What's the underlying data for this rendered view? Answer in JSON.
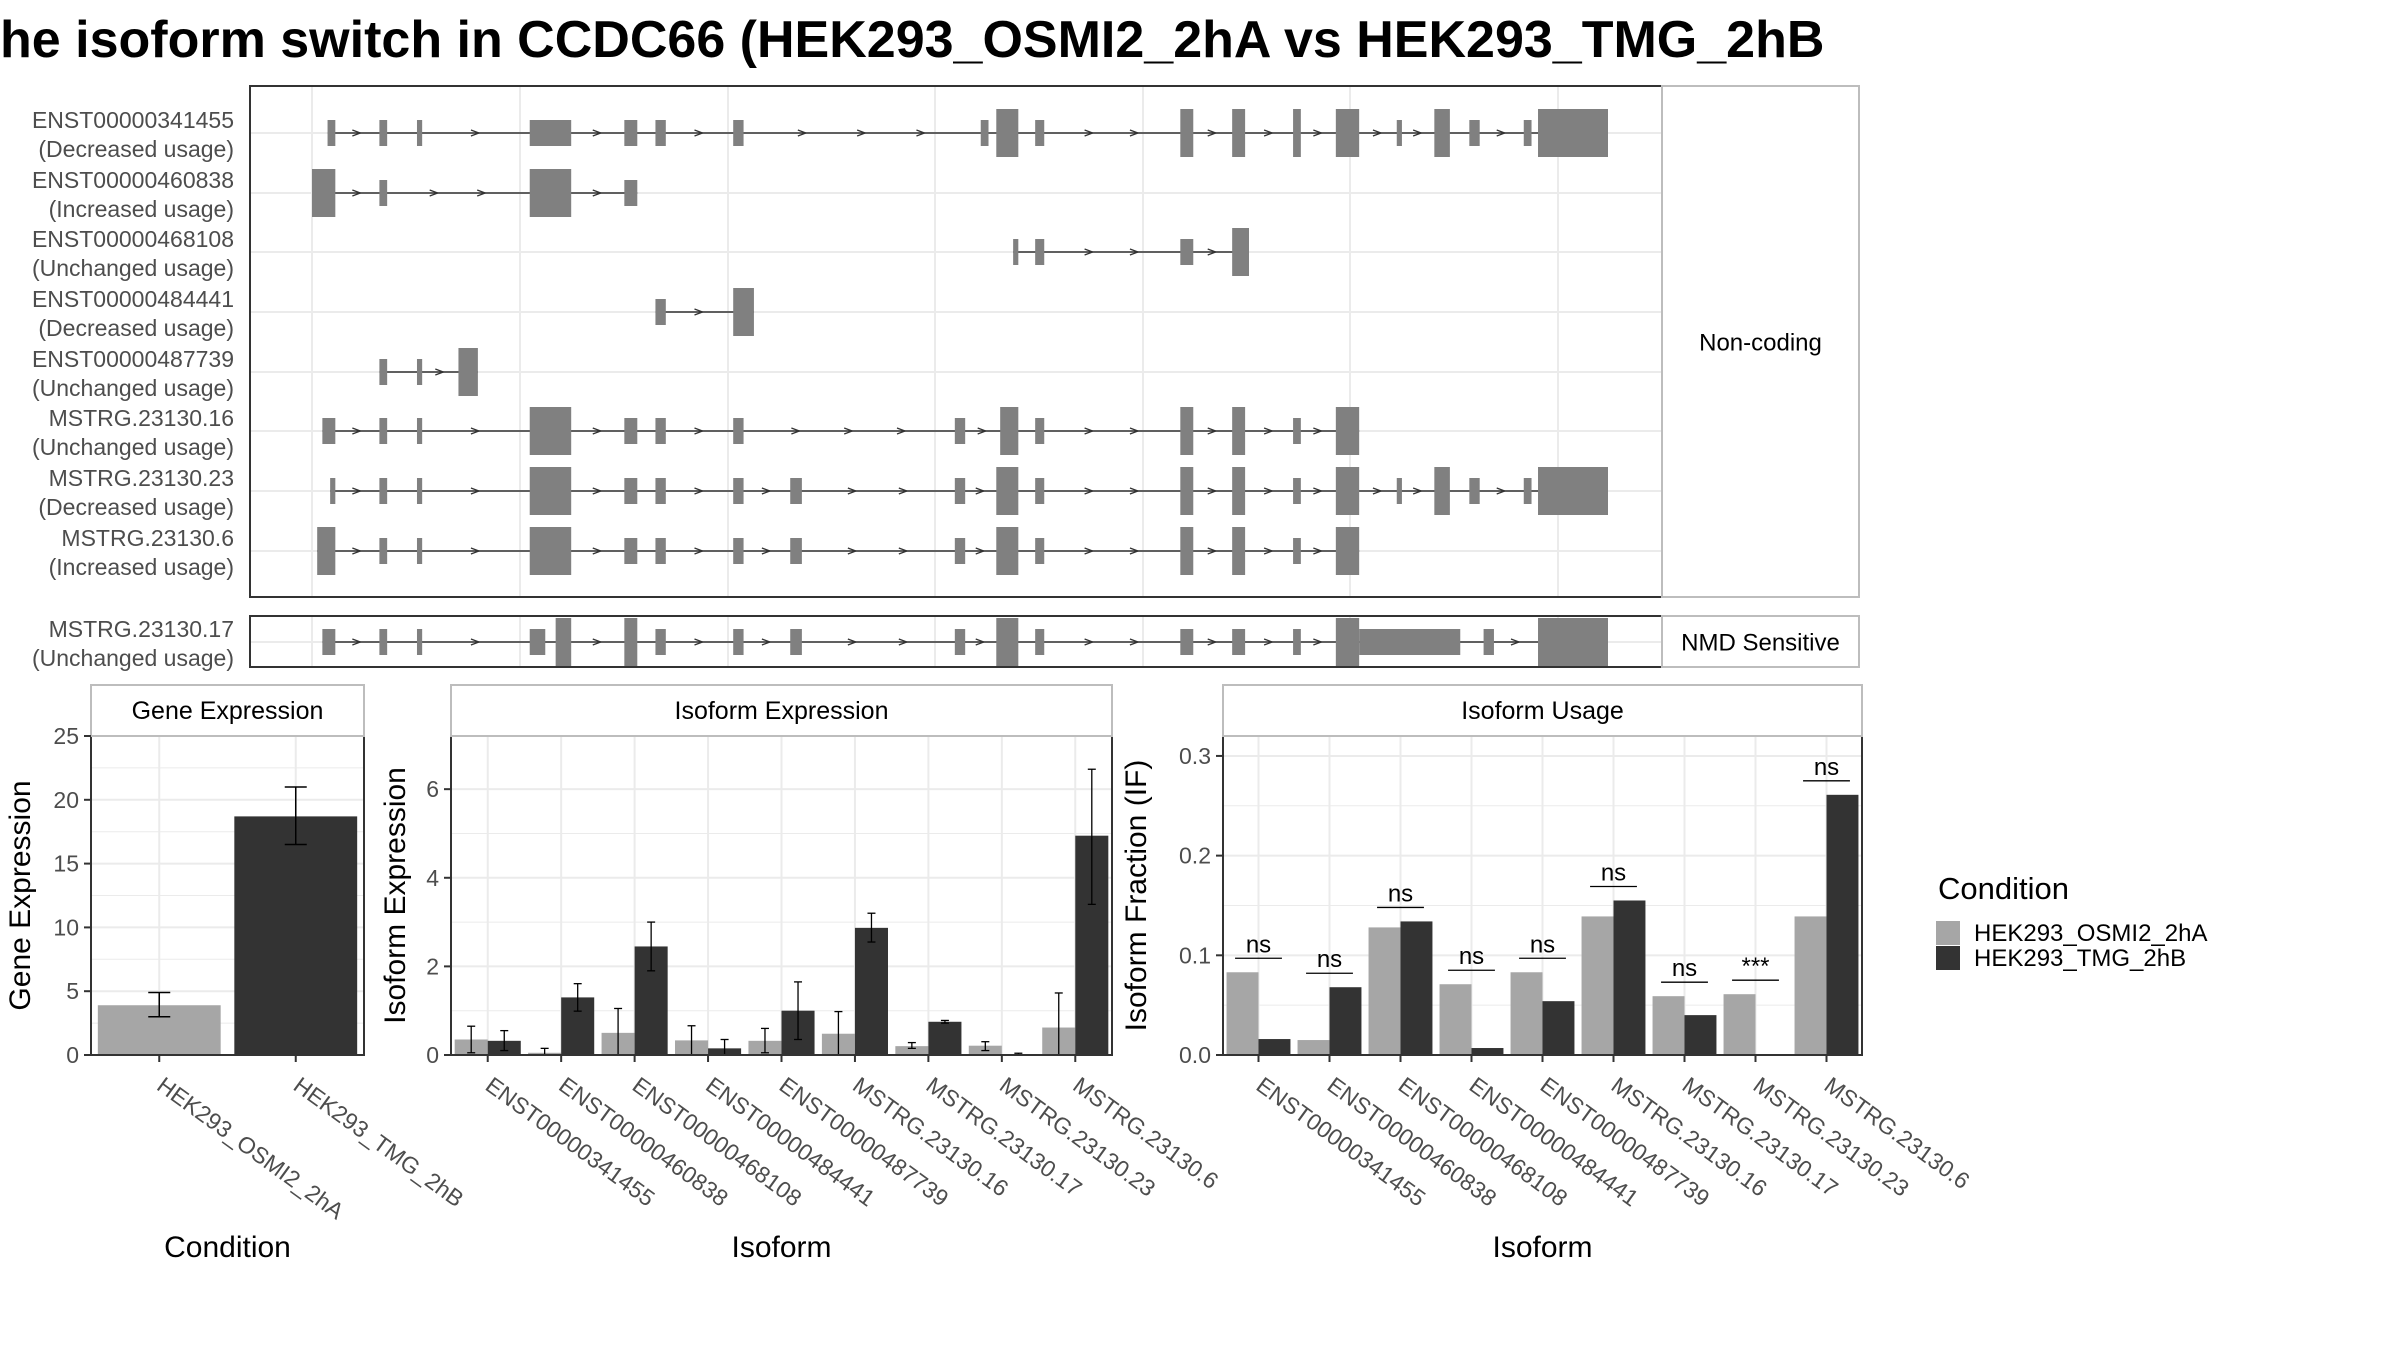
{
  "title": "he isoform switch in CCDC66 (HEK293_OSMI2_2hA vs HEK293_TMG_2hB",
  "colors": {
    "cond_a": "#a6a6a6",
    "cond_b": "#333333",
    "exon": "#808080",
    "grid": "#ebebeb",
    "panel_border": "#333333",
    "strip_border": "#bdbdbd"
  },
  "transcripts": {
    "groups": [
      {
        "label": "Non-coding",
        "isoforms": [
          {
            "id": "ENST00000341455",
            "usage": "(Decreased usage)",
            "exons": [
              [
                0.012,
                0.018
              ],
              [
                0.052,
                0.058
              ],
              [
                0.081,
                0.085
              ],
              [
                0.168,
                0.2
              ],
              [
                0.241,
                0.251
              ],
              [
                0.265,
                0.273
              ],
              [
                0.325,
                0.333
              ],
              [
                0.516,
                0.522
              ],
              [
                0.528,
                0.545
              ],
              [
                0.558,
                0.565
              ],
              [
                0.67,
                0.68
              ],
              [
                0.71,
                0.72
              ],
              [
                0.757,
                0.763
              ],
              [
                0.79,
                0.808
              ],
              [
                0.837,
                0.841
              ],
              [
                0.866,
                0.878
              ],
              [
                0.893,
                0.901
              ],
              [
                0.935,
                0.941
              ],
              [
                0.946,
                1.0
              ]
            ],
            "thick": [
              [
                0.528,
                0.545
              ],
              [
                0.67,
                0.68
              ],
              [
                0.71,
                0.72
              ],
              [
                0.757,
                0.763
              ],
              [
                0.79,
                0.808
              ],
              [
                0.866,
                0.878
              ],
              [
                0.946,
                1.0
              ]
            ]
          },
          {
            "id": "ENST00000460838",
            "usage": "(Increased usage)",
            "exons": [
              [
                0.0,
                0.018
              ],
              [
                0.052,
                0.058
              ],
              [
                0.168,
                0.2
              ],
              [
                0.241,
                0.251
              ]
            ],
            "thick": [
              [
                0.0,
                0.018
              ],
              [
                0.168,
                0.2
              ]
            ]
          },
          {
            "id": "ENST00000468108",
            "usage": "(Unchanged usage)",
            "exons": [
              [
                0.541,
                0.545
              ],
              [
                0.558,
                0.565
              ],
              [
                0.67,
                0.68
              ],
              [
                0.71,
                0.723
              ]
            ],
            "thick": [
              [
                0.71,
                0.723
              ]
            ]
          },
          {
            "id": "ENST00000484441",
            "usage": "(Decreased usage)",
            "exons": [
              [
                0.265,
                0.273
              ],
              [
                0.325,
                0.341
              ]
            ],
            "thick": [
              [
                0.325,
                0.341
              ]
            ]
          },
          {
            "id": "ENST00000487739",
            "usage": "(Unchanged usage)",
            "exons": [
              [
                0.052,
                0.058
              ],
              [
                0.081,
                0.085
              ],
              [
                0.113,
                0.128
              ]
            ],
            "thick": [
              [
                0.113,
                0.128
              ]
            ]
          },
          {
            "id": "MSTRG.23130.16",
            "usage": "(Unchanged usage)",
            "exons": [
              [
                0.008,
                0.018
              ],
              [
                0.052,
                0.058
              ],
              [
                0.081,
                0.085
              ],
              [
                0.168,
                0.2
              ],
              [
                0.241,
                0.251
              ],
              [
                0.265,
                0.273
              ],
              [
                0.325,
                0.333
              ],
              [
                0.496,
                0.504
              ],
              [
                0.531,
                0.545
              ],
              [
                0.558,
                0.565
              ],
              [
                0.67,
                0.68
              ],
              [
                0.71,
                0.72
              ],
              [
                0.757,
                0.763
              ],
              [
                0.79,
                0.808
              ]
            ],
            "thick": [
              [
                0.168,
                0.2
              ],
              [
                0.531,
                0.545
              ],
              [
                0.67,
                0.68
              ],
              [
                0.71,
                0.72
              ],
              [
                0.79,
                0.808
              ]
            ]
          },
          {
            "id": "MSTRG.23130.23",
            "usage": "(Decreased usage)",
            "exons": [
              [
                0.014,
                0.018
              ],
              [
                0.052,
                0.058
              ],
              [
                0.081,
                0.085
              ],
              [
                0.168,
                0.2
              ],
              [
                0.241,
                0.251
              ],
              [
                0.265,
                0.273
              ],
              [
                0.325,
                0.333
              ],
              [
                0.369,
                0.378
              ],
              [
                0.496,
                0.504
              ],
              [
                0.528,
                0.545
              ],
              [
                0.558,
                0.565
              ],
              [
                0.67,
                0.68
              ],
              [
                0.71,
                0.72
              ],
              [
                0.757,
                0.763
              ],
              [
                0.79,
                0.808
              ],
              [
                0.837,
                0.841
              ],
              [
                0.866,
                0.878
              ],
              [
                0.893,
                0.901
              ],
              [
                0.935,
                0.941
              ],
              [
                0.946,
                1.0
              ]
            ],
            "thick": [
              [
                0.168,
                0.2
              ],
              [
                0.528,
                0.545
              ],
              [
                0.67,
                0.68
              ],
              [
                0.71,
                0.72
              ],
              [
                0.79,
                0.808
              ],
              [
                0.866,
                0.878
              ],
              [
                0.946,
                1.0
              ]
            ]
          },
          {
            "id": "MSTRG.23130.6",
            "usage": "(Increased usage)",
            "exons": [
              [
                0.004,
                0.018
              ],
              [
                0.052,
                0.058
              ],
              [
                0.081,
                0.085
              ],
              [
                0.168,
                0.2
              ],
              [
                0.241,
                0.251
              ],
              [
                0.265,
                0.273
              ],
              [
                0.325,
                0.333
              ],
              [
                0.369,
                0.378
              ],
              [
                0.496,
                0.504
              ],
              [
                0.528,
                0.545
              ],
              [
                0.558,
                0.565
              ],
              [
                0.67,
                0.68
              ],
              [
                0.71,
                0.72
              ],
              [
                0.757,
                0.763
              ],
              [
                0.79,
                0.808
              ]
            ],
            "thick": [
              [
                0.004,
                0.018
              ],
              [
                0.168,
                0.2
              ],
              [
                0.528,
                0.545
              ],
              [
                0.67,
                0.68
              ],
              [
                0.71,
                0.72
              ],
              [
                0.79,
                0.808
              ]
            ]
          }
        ]
      },
      {
        "label": "NMD Sensitive",
        "isoforms": [
          {
            "id": "MSTRG.23130.17",
            "usage": "(Unchanged usage)",
            "exons": [
              [
                0.008,
                0.018
              ],
              [
                0.052,
                0.058
              ],
              [
                0.081,
                0.085
              ],
              [
                0.168,
                0.18
              ],
              [
                0.188,
                0.2
              ],
              [
                0.241,
                0.251
              ],
              [
                0.265,
                0.273
              ],
              [
                0.325,
                0.333
              ],
              [
                0.369,
                0.378
              ],
              [
                0.496,
                0.504
              ],
              [
                0.528,
                0.545
              ],
              [
                0.558,
                0.565
              ],
              [
                0.67,
                0.68
              ],
              [
                0.71,
                0.72
              ],
              [
                0.757,
                0.763
              ],
              [
                0.79,
                0.808
              ],
              [
                0.808,
                0.886
              ],
              [
                0.904,
                0.912
              ],
              [
                0.946,
                1.0
              ]
            ],
            "thick": [
              [
                0.188,
                0.2
              ],
              [
                0.241,
                0.251
              ],
              [
                0.528,
                0.545
              ],
              [
                0.79,
                0.808
              ],
              [
                0.946,
                1.0
              ]
            ]
          }
        ]
      }
    ]
  },
  "chart_data": [
    {
      "type": "bar",
      "title": "Gene Expression",
      "xlabel": "Condition",
      "ylabel": "Gene Expression",
      "categories": [
        "HEK293_OSMI2_2hA",
        "HEK293_TMG_2hB"
      ],
      "values": [
        3.9,
        18.7
      ],
      "errors": [
        [
          3.0,
          4.9
        ],
        [
          16.5,
          21.0
        ]
      ],
      "ylim": [
        0,
        25
      ],
      "yticks": [
        0,
        5,
        10,
        15,
        20,
        25
      ],
      "grid": true
    },
    {
      "type": "bar",
      "title": "Isoform Expression",
      "xlabel": "Isoform",
      "ylabel": "Isoform Expression",
      "categories": [
        "ENST00000341455",
        "ENST00000460838",
        "ENST00000468108",
        "ENST00000484441",
        "ENST00000487739",
        "MSTRG.23130.16",
        "MSTRG.23130.17",
        "MSTRG.23130.23",
        "MSTRG.23130.6"
      ],
      "series": [
        {
          "name": "HEK293_OSMI2_2hA",
          "values": [
            0.35,
            0.05,
            0.5,
            0.33,
            0.32,
            0.48,
            0.2,
            0.21,
            0.62
          ],
          "errors": [
            [
              0.05,
              0.65
            ],
            [
              0.0,
              0.15
            ],
            [
              0.0,
              1.05
            ],
            [
              0.0,
              0.66
            ],
            [
              0.05,
              0.6
            ],
            [
              0.0,
              0.98
            ],
            [
              0.15,
              0.28
            ],
            [
              0.1,
              0.3
            ],
            [
              0.0,
              1.4
            ]
          ]
        },
        {
          "name": "HEK293_TMG_2hB",
          "values": [
            0.32,
            1.3,
            2.45,
            0.15,
            1.0,
            2.87,
            0.75,
            0.02,
            4.95
          ],
          "errors": [
            [
              0.1,
              0.55
            ],
            [
              0.99,
              1.61
            ],
            [
              1.9,
              3.0
            ],
            [
              0.0,
              0.35
            ],
            [
              0.35,
              1.65
            ],
            [
              2.55,
              3.2
            ],
            [
              0.72,
              0.78
            ],
            [
              0.0,
              0.04
            ],
            [
              3.4,
              6.45
            ]
          ]
        }
      ],
      "ylim": [
        0,
        7.2
      ],
      "yticks": [
        0,
        2,
        4,
        6
      ],
      "grid": true
    },
    {
      "type": "bar",
      "title": "Isoform Usage",
      "xlabel": "Isoform",
      "ylabel": "Isoform Fraction (IF)",
      "categories": [
        "ENST00000341455",
        "ENST00000460838",
        "ENST00000468108",
        "ENST00000484441",
        "ENST00000487739",
        "MSTRG.23130.16",
        "MSTRG.23130.17",
        "MSTRG.23130.23",
        "MSTRG.23130.6"
      ],
      "series": [
        {
          "name": "HEK293_OSMI2_2hA",
          "values": [
            0.083,
            0.015,
            0.128,
            0.071,
            0.083,
            0.139,
            0.059,
            0.061,
            0.139
          ]
        },
        {
          "name": "HEK293_TMG_2hB",
          "values": [
            0.016,
            0.068,
            0.134,
            0.007,
            0.054,
            0.155,
            0.04,
            0.0,
            0.261
          ]
        }
      ],
      "annotations": [
        "ns",
        "ns",
        "ns",
        "ns",
        "ns",
        "ns",
        "ns",
        "***",
        "ns"
      ],
      "ylim": [
        0,
        0.32
      ],
      "yticks": [
        0.0,
        0.1,
        0.2,
        0.3
      ],
      "grid": true
    }
  ],
  "legend": {
    "title": "Condition",
    "items": [
      {
        "label": "HEK293_OSMI2_2hA",
        "color": "#a6a6a6"
      },
      {
        "label": "HEK293_TMG_2hB",
        "color": "#333333"
      }
    ]
  }
}
